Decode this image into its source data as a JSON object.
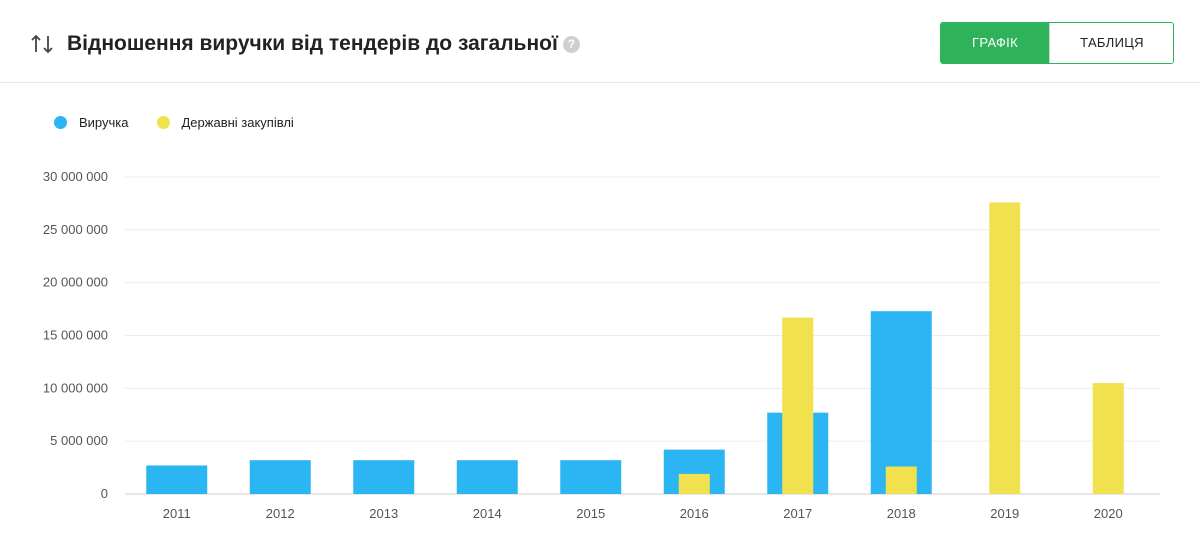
{
  "header": {
    "title": "Відношення виручки від тендерів до загальної",
    "help_symbol": "?"
  },
  "tabs": {
    "graph_label": "ГРАФІК",
    "table_label": "ТАБЛИЦЯ",
    "active": "graph"
  },
  "colors": {
    "revenue": "#2bb5f2",
    "procurement": "#f2e14e",
    "accent": "#2fb35a"
  },
  "chart_data": {
    "type": "bar",
    "categories": [
      "2011",
      "2012",
      "2013",
      "2014",
      "2015",
      "2016",
      "2017",
      "2018",
      "2019",
      "2020"
    ],
    "series": [
      {
        "name": "Виручка",
        "color": "#2bb5f2",
        "values": [
          2700000,
          3200000,
          3200000,
          3200000,
          3200000,
          4200000,
          7700000,
          17300000,
          0,
          0
        ]
      },
      {
        "name": "Державні закупівлі",
        "color": "#f2e14e",
        "values": [
          0,
          0,
          0,
          0,
          0,
          1900000,
          16700000,
          2600000,
          27600000,
          10500000
        ]
      }
    ],
    "ylim": [
      0,
      30000000
    ],
    "yticks": [
      0,
      5000000,
      10000000,
      15000000,
      20000000,
      25000000,
      30000000
    ],
    "ytick_labels": [
      "0",
      "5 000 000",
      "10 000 000",
      "15 000 000",
      "20 000 000",
      "25 000 000",
      "30 000 000"
    ],
    "legend_position": "top-left",
    "grid": true,
    "overlapping_bars": true
  }
}
